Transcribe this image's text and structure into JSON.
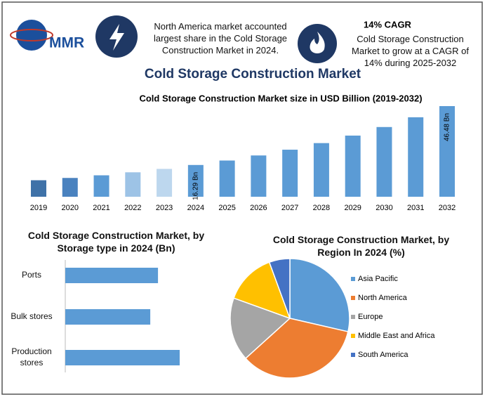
{
  "header": {
    "logo": "MMR",
    "info_left": "North America market accounted largest share in the Cold Storage Construction Market in 2024.",
    "info_right_title": "14% CAGR",
    "info_right": "Cold Storage Construction Market to grow at a CAGR of 14% during 2025-2032",
    "title": "Cold Storage Construction Market"
  },
  "chart_data": [
    {
      "type": "bar",
      "title": "Cold Storage Construction Market size in USD Billion (2019-2032)",
      "categories": [
        "2019",
        "2020",
        "2021",
        "2022",
        "2023",
        "2024",
        "2025",
        "2026",
        "2027",
        "2028",
        "2029",
        "2030",
        "2031",
        "2032"
      ],
      "values": [
        8.46,
        9.64,
        10.99,
        12.53,
        14.29,
        16.29,
        18.57,
        21.17,
        24.13,
        27.51,
        31.36,
        35.75,
        40.76,
        46.48
      ],
      "value_labels": [
        null,
        null,
        null,
        null,
        null,
        "16.29 Bn",
        null,
        null,
        null,
        null,
        null,
        null,
        null,
        "46.48 Bn"
      ],
      "colors": [
        "#3f72a8",
        "#4a82bf",
        "#5b9bd5",
        "#9dc3e6",
        "#bdd7ee",
        "#5b9bd5",
        "#5b9bd5",
        "#5b9bd5",
        "#5b9bd5",
        "#5b9bd5",
        "#5b9bd5",
        "#5b9bd5",
        "#5b9bd5",
        "#5b9bd5"
      ]
    },
    {
      "type": "barh",
      "title": "Cold Storage Construction Market, by Storage type in 2024 (Bn)",
      "categories": [
        "Ports",
        "Bulk stores",
        "Production stores"
      ],
      "values": [
        5.17,
        4.74,
        6.38
      ],
      "color": "#5b9bd5"
    },
    {
      "type": "pie",
      "title": "Cold Storage Construction Market, by Region In 2024 (%)",
      "categories": [
        "Asia Pacific",
        "North America",
        "Europe",
        "Middle East and Africa",
        "South America"
      ],
      "values": [
        28.6,
        34.7,
        17.2,
        13.9,
        5.6
      ],
      "colors": [
        "#5b9bd5",
        "#ed7d31",
        "#a5a5a5",
        "#ffc000",
        "#4472c4"
      ],
      "legend": "right"
    }
  ]
}
